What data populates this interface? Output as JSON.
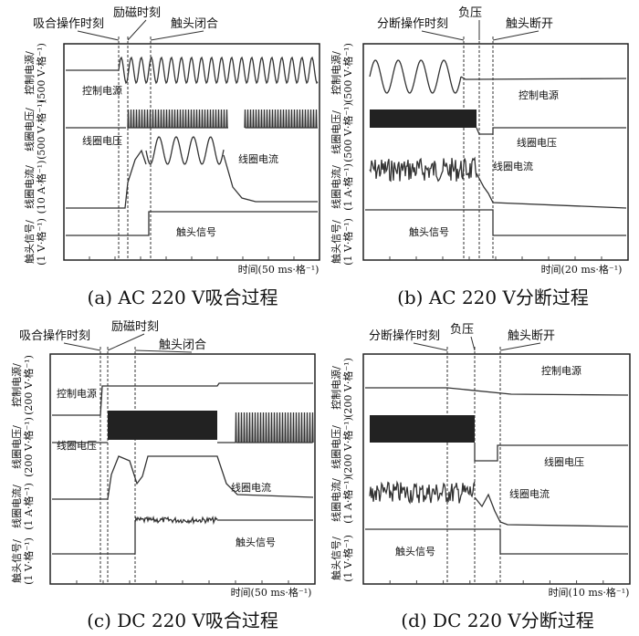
{
  "panels": [
    {
      "caption": "(a)  AC 220 V吸合过程",
      "time_label": "时间(50 ms·格⁻¹)",
      "events": [
        "吸合操作时刻",
        "励磁时刻",
        "触头闭合"
      ],
      "channels": [
        [
          "控制电源/",
          "(500 V·格⁻¹)"
        ],
        [
          "线圈电压/",
          "(500 V·格⁻¹)"
        ],
        [
          "线圈电流/",
          "(10 A·格⁻¹)"
        ],
        [
          "触头信号/",
          "(1 V·格⁻¹)"
        ]
      ],
      "traces": [
        "控制电源",
        "线圈电压",
        "线圈电流",
        "触头信号"
      ]
    },
    {
      "caption": "(b)  AC 220 V分断过程",
      "time_label": "时间(20 ms·格⁻¹)",
      "events": [
        "分断操作时刻",
        "负压",
        "触头断开"
      ],
      "channels": [
        [
          "控制电源/",
          "(500 V·格⁻¹)"
        ],
        [
          "线圈电压/",
          "(500 V·格⁻¹)"
        ],
        [
          "线圈电流/",
          "(1 A·格⁻¹)"
        ],
        [
          "触头信号/",
          "(1 V·格⁻¹)"
        ]
      ],
      "traces": [
        "控制电源",
        "线圈电压",
        "线圈电流",
        "触头信号"
      ]
    },
    {
      "caption": "(c)  DC 220 V吸合过程",
      "time_label": "时间(50 ms·格⁻¹)",
      "events": [
        "吸合操作时刻",
        "励磁时刻",
        "触头闭合"
      ],
      "channels": [
        [
          "控制电源/",
          "(200 V·格⁻¹)"
        ],
        [
          "线圈电压/",
          "(200 V·格⁻¹)"
        ],
        [
          "线圈电流/",
          "(1 A·格⁻¹)"
        ],
        [
          "触头信号/",
          "(1 V·格⁻¹)"
        ]
      ],
      "traces": [
        "控制电源",
        "线圈电压",
        "线圈电流",
        "触头信号"
      ]
    },
    {
      "caption": "(d)  DC 220 V分断过程",
      "time_label": "时间(10 ms·格⁻¹)",
      "events": [
        "分断操作时刻",
        "负压",
        "触头断开"
      ],
      "channels": [
        [
          "控制电源/",
          "(200 V·格⁻¹)"
        ],
        [
          "线圈电压/",
          "(200 V·格⁻¹)"
        ],
        [
          "线圈电流/",
          "(1 A·格⁻¹)"
        ],
        [
          "触头信号/",
          "(1 V·格⁻¹)"
        ]
      ],
      "traces": [
        "控制电源",
        "线圈电压",
        "线圈电流",
        "触头信号"
      ]
    }
  ]
}
